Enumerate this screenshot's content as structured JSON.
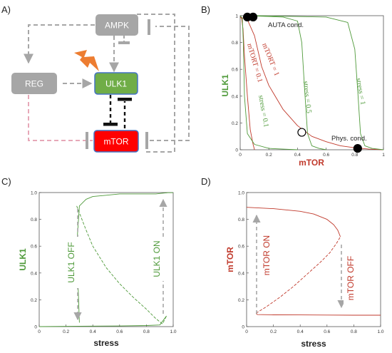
{
  "panels": {
    "a": "A)",
    "b": "B)",
    "c": "C)",
    "d": "D)"
  },
  "diagram": {
    "nodes": {
      "ampk": "AMPK",
      "reg": "REG",
      "ulk1": "ULK1",
      "mtor": "mTOR"
    },
    "colors": {
      "gray": "#a6a6a6",
      "ulk1_fill": "#70ad47",
      "ulk1_border": "#4472c4",
      "mtor_fill": "#ff0000",
      "mtor_border": "#4472c4",
      "lightning": "#ed7d31",
      "arrow_gray": "#a6a6a6",
      "reg_to_mtor": "#e7a8b8"
    }
  },
  "chart_b": {
    "xlabel": "mTOR",
    "ylabel": "ULK1",
    "xticks": [
      "0",
      "0.2",
      "0.4",
      "0.6",
      "0.8",
      "1"
    ],
    "yticks": [
      "0",
      "0.2",
      "0.4",
      "0.6",
      "0.8",
      "1"
    ],
    "labels": {
      "mtor01": "mTORT = 0.1",
      "mtor1": "mTORT = 1",
      "s01": "stress = 0.1",
      "s05": "stress = 0.5",
      "s1": "stress = 1",
      "auta": "AUTA cond.",
      "phys": "Phys. cond."
    }
  },
  "chart_c": {
    "xlabel": "stress",
    "ylabel": "ULK1",
    "xticks": [
      "0",
      "0.2",
      "0.4",
      "0.6",
      "0.8",
      "1.0"
    ],
    "yticks": [
      "0",
      "0.2",
      "0.4",
      "0.6",
      "0.8",
      "1.0"
    ],
    "labels": {
      "off": "ULK1 OFF",
      "on": "ULK1 ON"
    }
  },
  "chart_d": {
    "xlabel": "stress",
    "ylabel": "mTOR",
    "xticks": [
      "0",
      "0.2",
      "0.4",
      "0.6",
      "0.8",
      "1.0"
    ],
    "yticks": [
      "0",
      "0.2",
      "0.4",
      "0.6",
      "0.8",
      "1.0"
    ],
    "labels": {
      "on": "mTOR ON",
      "off": "mTOR OFF"
    }
  },
  "chart_data": [
    {
      "type": "line",
      "xlabel": "mTOR",
      "ylabel": "ULK1",
      "xlim": [
        0,
        1
      ],
      "ylim": [
        0,
        1
      ],
      "series": [
        {
          "name": "mTORT = 0.1",
          "color": "#c0392b",
          "x": [
            0.0,
            0.01,
            0.02,
            0.03,
            0.05,
            0.07,
            0.09,
            0.1
          ],
          "y": [
            0.99,
            0.98,
            0.9,
            0.7,
            0.4,
            0.15,
            0.04,
            0.0
          ]
        },
        {
          "name": "mTORT = 1",
          "color": "#c0392b",
          "x": [
            0.0,
            0.05,
            0.1,
            0.15,
            0.2,
            0.3,
            0.4,
            0.5,
            0.6,
            0.7,
            0.8,
            0.9,
            1.0
          ],
          "y": [
            0.99,
            0.97,
            0.85,
            0.62,
            0.48,
            0.3,
            0.18,
            0.1,
            0.06,
            0.03,
            0.015,
            0.005,
            0.0
          ]
        },
        {
          "name": "stress = 0.1",
          "color": "#4f9a3a",
          "x": [
            0.0,
            0.015,
            0.022,
            0.03,
            0.05,
            0.1,
            0.2,
            0.3,
            0.4
          ],
          "y": [
            1.0,
            0.98,
            0.8,
            0.4,
            0.12,
            0.04,
            0.01,
            0.005,
            0.0
          ]
        },
        {
          "name": "stress = 0.5",
          "color": "#4f9a3a",
          "x": [
            0.05,
            0.3,
            0.4,
            0.43,
            0.45,
            0.47,
            0.5,
            0.55,
            0.6
          ],
          "y": [
            1.0,
            0.99,
            0.96,
            0.8,
            0.45,
            0.12,
            0.03,
            0.01,
            0.0
          ]
        },
        {
          "name": "stress = 1",
          "color": "#4f9a3a",
          "x": [
            0.1,
            0.6,
            0.75,
            0.8,
            0.82,
            0.84,
            0.87,
            0.92,
            1.0
          ],
          "y": [
            1.0,
            0.99,
            0.95,
            0.75,
            0.45,
            0.12,
            0.03,
            0.01,
            0.0
          ]
        }
      ],
      "points": [
        {
          "label": "",
          "x": 0.05,
          "y": 0.99,
          "fill": "#000000"
        },
        {
          "label": "AUTA cond.",
          "x": 0.09,
          "y": 0.99,
          "fill": "#000000"
        },
        {
          "label": "",
          "x": 0.43,
          "y": 0.13,
          "fill": "#ffffff"
        },
        {
          "label": "Phys. cond.",
          "x": 0.82,
          "y": 0.01,
          "fill": "#000000"
        }
      ]
    },
    {
      "type": "line",
      "xlabel": "stress",
      "ylabel": "ULK1",
      "xlim": [
        0,
        1
      ],
      "ylim": [
        0,
        1
      ],
      "series": [
        {
          "name": "",
          "color": "#4f9a3a",
          "x": [
            0.3,
            0.28,
            0.3,
            0.35,
            0.4,
            0.5,
            0.6,
            0.7,
            0.8,
            0.87,
            0.92,
            0.94,
            0.95,
            0.96,
            1.0
          ],
          "y": [
            0.03,
            0.6,
            0.9,
            0.95,
            0.97,
            0.98,
            0.99,
            0.99,
            0.99,
            0.99,
            0.995,
            0.997,
            0.998,
            0.999,
            0.999
          ]
        },
        {
          "name": "",
          "color": "#4f9a3a",
          "dashed": true,
          "x": [
            0.28,
            0.35,
            0.4,
            0.5,
            0.6,
            0.7,
            0.8,
            0.87,
            0.92,
            0.95
          ],
          "y": [
            0.9,
            0.72,
            0.6,
            0.44,
            0.32,
            0.22,
            0.13,
            0.06,
            0.02,
            0.08
          ]
        },
        {
          "name": "",
          "color": "#4f9a3a",
          "x": [
            0.0,
            0.3,
            0.6,
            0.8,
            0.9,
            0.95
          ],
          "y": [
            0.0,
            0.003,
            0.005,
            0.008,
            0.012,
            0.08
          ]
        }
      ]
    },
    {
      "type": "line",
      "xlabel": "stress",
      "ylabel": "mTOR",
      "xlim": [
        0,
        1
      ],
      "ylim": [
        0,
        1
      ],
      "series": [
        {
          "name": "",
          "color": "#c0392b",
          "x": [
            0.0,
            0.2,
            0.4,
            0.5,
            0.6,
            0.65,
            0.68,
            0.7
          ],
          "y": [
            0.89,
            0.88,
            0.86,
            0.84,
            0.8,
            0.76,
            0.72,
            0.67
          ]
        },
        {
          "name": "",
          "color": "#c0392b",
          "dashed": true,
          "x": [
            0.07,
            0.15,
            0.25,
            0.35,
            0.45,
            0.55,
            0.62,
            0.67,
            0.7
          ],
          "y": [
            0.1,
            0.15,
            0.22,
            0.3,
            0.39,
            0.48,
            0.55,
            0.62,
            0.67
          ]
        },
        {
          "name": "",
          "color": "#c0392b",
          "x": [
            0.07,
            0.08,
            0.2,
            0.4,
            0.6,
            0.8,
            1.0
          ],
          "y": [
            0.1,
            0.09,
            0.088,
            0.087,
            0.086,
            0.085,
            0.085
          ]
        }
      ]
    }
  ]
}
